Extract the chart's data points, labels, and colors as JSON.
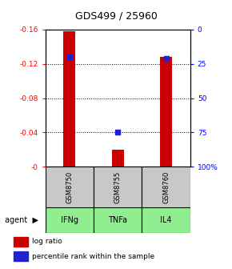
{
  "title": "GDS499 / 25960",
  "samples": [
    "GSM8750",
    "GSM8755",
    "GSM8760"
  ],
  "agents": [
    "IFNg",
    "TNFa",
    "IL4"
  ],
  "log_ratio": [
    -0.158,
    -0.02,
    -0.128
  ],
  "percentile": [
    20,
    75,
    21
  ],
  "ylim_left": [
    0.0,
    -0.16
  ],
  "yticks_left": [
    0,
    -0.04,
    -0.08,
    -0.12,
    -0.16
  ],
  "ytick_labels_left": [
    "-0",
    "-0.04",
    "-0.08",
    "-0.12",
    "-0.16"
  ],
  "ytick_labels_right": [
    "100%",
    "75",
    "50",
    "25",
    "0"
  ],
  "yticks_right": [
    100,
    75,
    50,
    25,
    0
  ],
  "grid_vals": [
    -0.04,
    -0.08,
    -0.12
  ],
  "bar_color": "#cc0000",
  "point_color": "#2222cc",
  "agent_bg": "#90ee90",
  "sample_bg": "#c8c8c8",
  "legend_bar_label": "log ratio",
  "legend_point_label": "percentile rank within the sample"
}
